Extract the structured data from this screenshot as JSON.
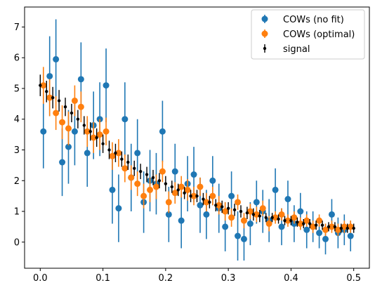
{
  "chart_data": {
    "type": "scatter",
    "xlim": [
      -0.025,
      0.525
    ],
    "ylim": [
      -0.85,
      7.65
    ],
    "xticks": [
      0.0,
      0.1,
      0.2,
      0.3,
      0.4,
      0.5
    ],
    "xtick_labels": [
      "0.0",
      "0.1",
      "0.2",
      "0.3",
      "0.4",
      "0.5"
    ],
    "yticks": [
      0,
      1,
      2,
      3,
      4,
      5,
      6,
      7
    ],
    "ytick_labels": [
      "0",
      "1",
      "2",
      "3",
      "4",
      "5",
      "6",
      "7"
    ],
    "grid": false,
    "legend_position": "top-right",
    "colors": {
      "no_fit": "#1f77b4",
      "optimal": "#ff7f0e",
      "signal": "#000000"
    },
    "series": [
      {
        "name": "COWs (no fit)",
        "marker": "large-circle",
        "x": [
          0.005,
          0.015,
          0.025,
          0.035,
          0.045,
          0.055,
          0.065,
          0.075,
          0.085,
          0.095,
          0.105,
          0.115,
          0.125,
          0.135,
          0.145,
          0.155,
          0.165,
          0.175,
          0.185,
          0.195,
          0.205,
          0.215,
          0.225,
          0.235,
          0.245,
          0.255,
          0.265,
          0.275,
          0.285,
          0.295,
          0.305,
          0.315,
          0.325,
          0.335,
          0.345,
          0.355,
          0.365,
          0.375,
          0.385,
          0.395,
          0.405,
          0.415,
          0.425,
          0.435,
          0.445,
          0.455,
          0.465,
          0.475,
          0.485,
          0.495
        ],
        "y": [
          3.6,
          5.4,
          5.95,
          2.6,
          3.1,
          3.6,
          5.3,
          2.9,
          3.8,
          4.0,
          5.1,
          1.7,
          1.1,
          4.0,
          2.1,
          2.9,
          1.3,
          2.0,
          1.9,
          3.6,
          0.9,
          2.3,
          0.7,
          1.9,
          2.2,
          1.2,
          0.9,
          2.0,
          1.1,
          0.5,
          1.5,
          0.2,
          0.1,
          0.6,
          1.3,
          1.0,
          0.7,
          1.7,
          0.5,
          1.4,
          0.6,
          1.0,
          0.4,
          0.5,
          0.3,
          0.1,
          0.9,
          0.3,
          0.4,
          0.2
        ],
        "yerr": [
          1.2,
          1.3,
          1.3,
          1.1,
          1.2,
          1.1,
          1.2,
          1.1,
          1.1,
          1.2,
          1.2,
          1.1,
          1.1,
          1.2,
          1.1,
          1.1,
          1.0,
          1.0,
          1.0,
          1.0,
          0.9,
          0.9,
          0.9,
          0.9,
          0.9,
          0.9,
          0.8,
          0.8,
          0.8,
          0.8,
          0.8,
          0.8,
          0.7,
          0.7,
          0.7,
          0.7,
          0.7,
          0.7,
          0.6,
          0.6,
          0.6,
          0.6,
          0.6,
          0.5,
          0.5,
          0.5,
          0.5,
          0.5,
          0.5,
          0.5
        ]
      },
      {
        "name": "COWs (optimal)",
        "marker": "circle",
        "x": [
          0.005,
          0.015,
          0.025,
          0.035,
          0.045,
          0.055,
          0.065,
          0.075,
          0.085,
          0.095,
          0.105,
          0.115,
          0.125,
          0.135,
          0.145,
          0.155,
          0.165,
          0.175,
          0.185,
          0.195,
          0.205,
          0.215,
          0.225,
          0.235,
          0.245,
          0.255,
          0.265,
          0.275,
          0.285,
          0.295,
          0.305,
          0.315,
          0.325,
          0.335,
          0.345,
          0.355,
          0.365,
          0.375,
          0.385,
          0.395,
          0.405,
          0.415,
          0.425,
          0.435,
          0.445,
          0.455,
          0.465,
          0.475,
          0.485,
          0.495
        ],
        "y": [
          5.1,
          4.7,
          4.2,
          3.9,
          3.7,
          4.6,
          4.4,
          3.6,
          3.4,
          3.5,
          3.6,
          2.8,
          2.9,
          2.4,
          2.1,
          1.9,
          1.5,
          1.7,
          1.8,
          2.3,
          1.3,
          1.6,
          1.8,
          1.7,
          1.5,
          1.8,
          1.3,
          1.5,
          1.2,
          1.0,
          0.8,
          1.3,
          0.7,
          1.0,
          0.9,
          1.1,
          0.6,
          0.8,
          0.9,
          0.7,
          0.8,
          0.6,
          0.7,
          0.5,
          0.7,
          0.4,
          0.5,
          0.4,
          0.5,
          0.5
        ],
        "yerr": [
          0.6,
          0.6,
          0.55,
          0.55,
          0.55,
          0.5,
          0.5,
          0.5,
          0.5,
          0.5,
          0.45,
          0.45,
          0.45,
          0.45,
          0.4,
          0.4,
          0.4,
          0.4,
          0.4,
          0.35,
          0.35,
          0.35,
          0.35,
          0.35,
          0.3,
          0.3,
          0.3,
          0.3,
          0.3,
          0.3,
          0.3,
          0.25,
          0.25,
          0.25,
          0.25,
          0.25,
          0.25,
          0.2,
          0.2,
          0.2,
          0.2,
          0.2,
          0.2,
          0.2,
          0.2,
          0.2,
          0.2,
          0.2,
          0.2,
          0.2
        ]
      },
      {
        "name": "signal",
        "marker": "small-dot",
        "x": [
          0.0,
          0.01,
          0.02,
          0.03,
          0.04,
          0.05,
          0.06,
          0.07,
          0.08,
          0.09,
          0.1,
          0.11,
          0.12,
          0.13,
          0.14,
          0.15,
          0.16,
          0.17,
          0.18,
          0.19,
          0.2,
          0.21,
          0.22,
          0.23,
          0.24,
          0.25,
          0.26,
          0.27,
          0.28,
          0.29,
          0.3,
          0.31,
          0.32,
          0.33,
          0.34,
          0.35,
          0.36,
          0.37,
          0.38,
          0.39,
          0.4,
          0.41,
          0.42,
          0.43,
          0.44,
          0.45,
          0.46,
          0.47,
          0.48,
          0.49,
          0.5
        ],
        "y": [
          5.1,
          4.9,
          4.7,
          4.6,
          4.4,
          4.2,
          4.0,
          3.8,
          3.6,
          3.4,
          3.2,
          3.0,
          2.9,
          2.7,
          2.6,
          2.4,
          2.3,
          2.2,
          2.1,
          2.0,
          1.9,
          1.8,
          1.7,
          1.6,
          1.5,
          1.5,
          1.4,
          1.3,
          1.2,
          1.15,
          1.1,
          1.05,
          1.0,
          0.95,
          0.9,
          0.85,
          0.8,
          0.8,
          0.75,
          0.7,
          0.7,
          0.65,
          0.6,
          0.6,
          0.55,
          0.55,
          0.5,
          0.5,
          0.45,
          0.45,
          0.45
        ],
        "yerr": [
          0.35,
          0.35,
          0.35,
          0.35,
          0.3,
          0.3,
          0.3,
          0.3,
          0.3,
          0.3,
          0.3,
          0.3,
          0.3,
          0.25,
          0.25,
          0.25,
          0.25,
          0.25,
          0.25,
          0.25,
          0.25,
          0.2,
          0.2,
          0.2,
          0.2,
          0.2,
          0.2,
          0.2,
          0.2,
          0.2,
          0.2,
          0.2,
          0.2,
          0.2,
          0.2,
          0.2,
          0.15,
          0.15,
          0.15,
          0.15,
          0.15,
          0.15,
          0.15,
          0.15,
          0.15,
          0.15,
          0.15,
          0.15,
          0.15,
          0.15,
          0.15
        ]
      }
    ]
  }
}
